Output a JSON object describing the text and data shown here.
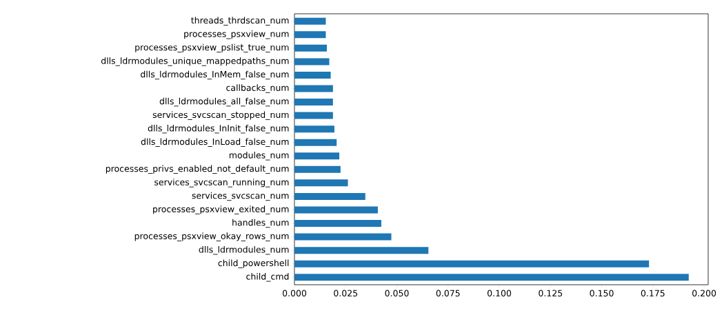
{
  "chart_data": {
    "type": "bar",
    "orientation": "horizontal",
    "categories": [
      "threads_thrdscan_num",
      "processes_psxview_num",
      "processes_psxview_pslist_true_num",
      "dlls_ldrmodules_unique_mappedpaths_num",
      "dlls_ldrmodules_InMem_false_num",
      "callbacks_num",
      "dlls_ldrmodules_all_false_num",
      "services_svcscan_stopped_num",
      "dlls_ldrmodules_InInit_false_num",
      "dlls_ldrmodules_InLoad_false_num",
      "modules_num",
      "processes_privs_enabled_not_default_num",
      "services_svcscan_running_num",
      "services_svcscan_num",
      "processes_psxview_exited_num",
      "handles_num",
      "processes_psxview_okay_rows_num",
      "dlls_ldrmodules_num",
      "child_powershell",
      "child_cmd"
    ],
    "values": [
      0.0153,
      0.0153,
      0.0158,
      0.017,
      0.0177,
      0.0188,
      0.0188,
      0.0188,
      0.0195,
      0.0206,
      0.0219,
      0.0225,
      0.0261,
      0.0346,
      0.0407,
      0.0424,
      0.0473,
      0.0654,
      0.1731,
      0.1925
    ],
    "color": "#1f77b4",
    "xlim": [
      0,
      0.202
    ],
    "xticks": [
      {
        "value": 0,
        "label": "0.000"
      },
      {
        "value": 0.025,
        "label": "0.025"
      },
      {
        "value": 0.05,
        "label": "0.050"
      },
      {
        "value": 0.075,
        "label": "0.075"
      },
      {
        "value": 0.1,
        "label": "0.100"
      },
      {
        "value": 0.125,
        "label": "0.125"
      },
      {
        "value": 0.15,
        "label": "0.150"
      },
      {
        "value": 0.175,
        "label": "0.175"
      },
      {
        "value": 0.2,
        "label": "0.200"
      }
    ],
    "grid": false
  }
}
